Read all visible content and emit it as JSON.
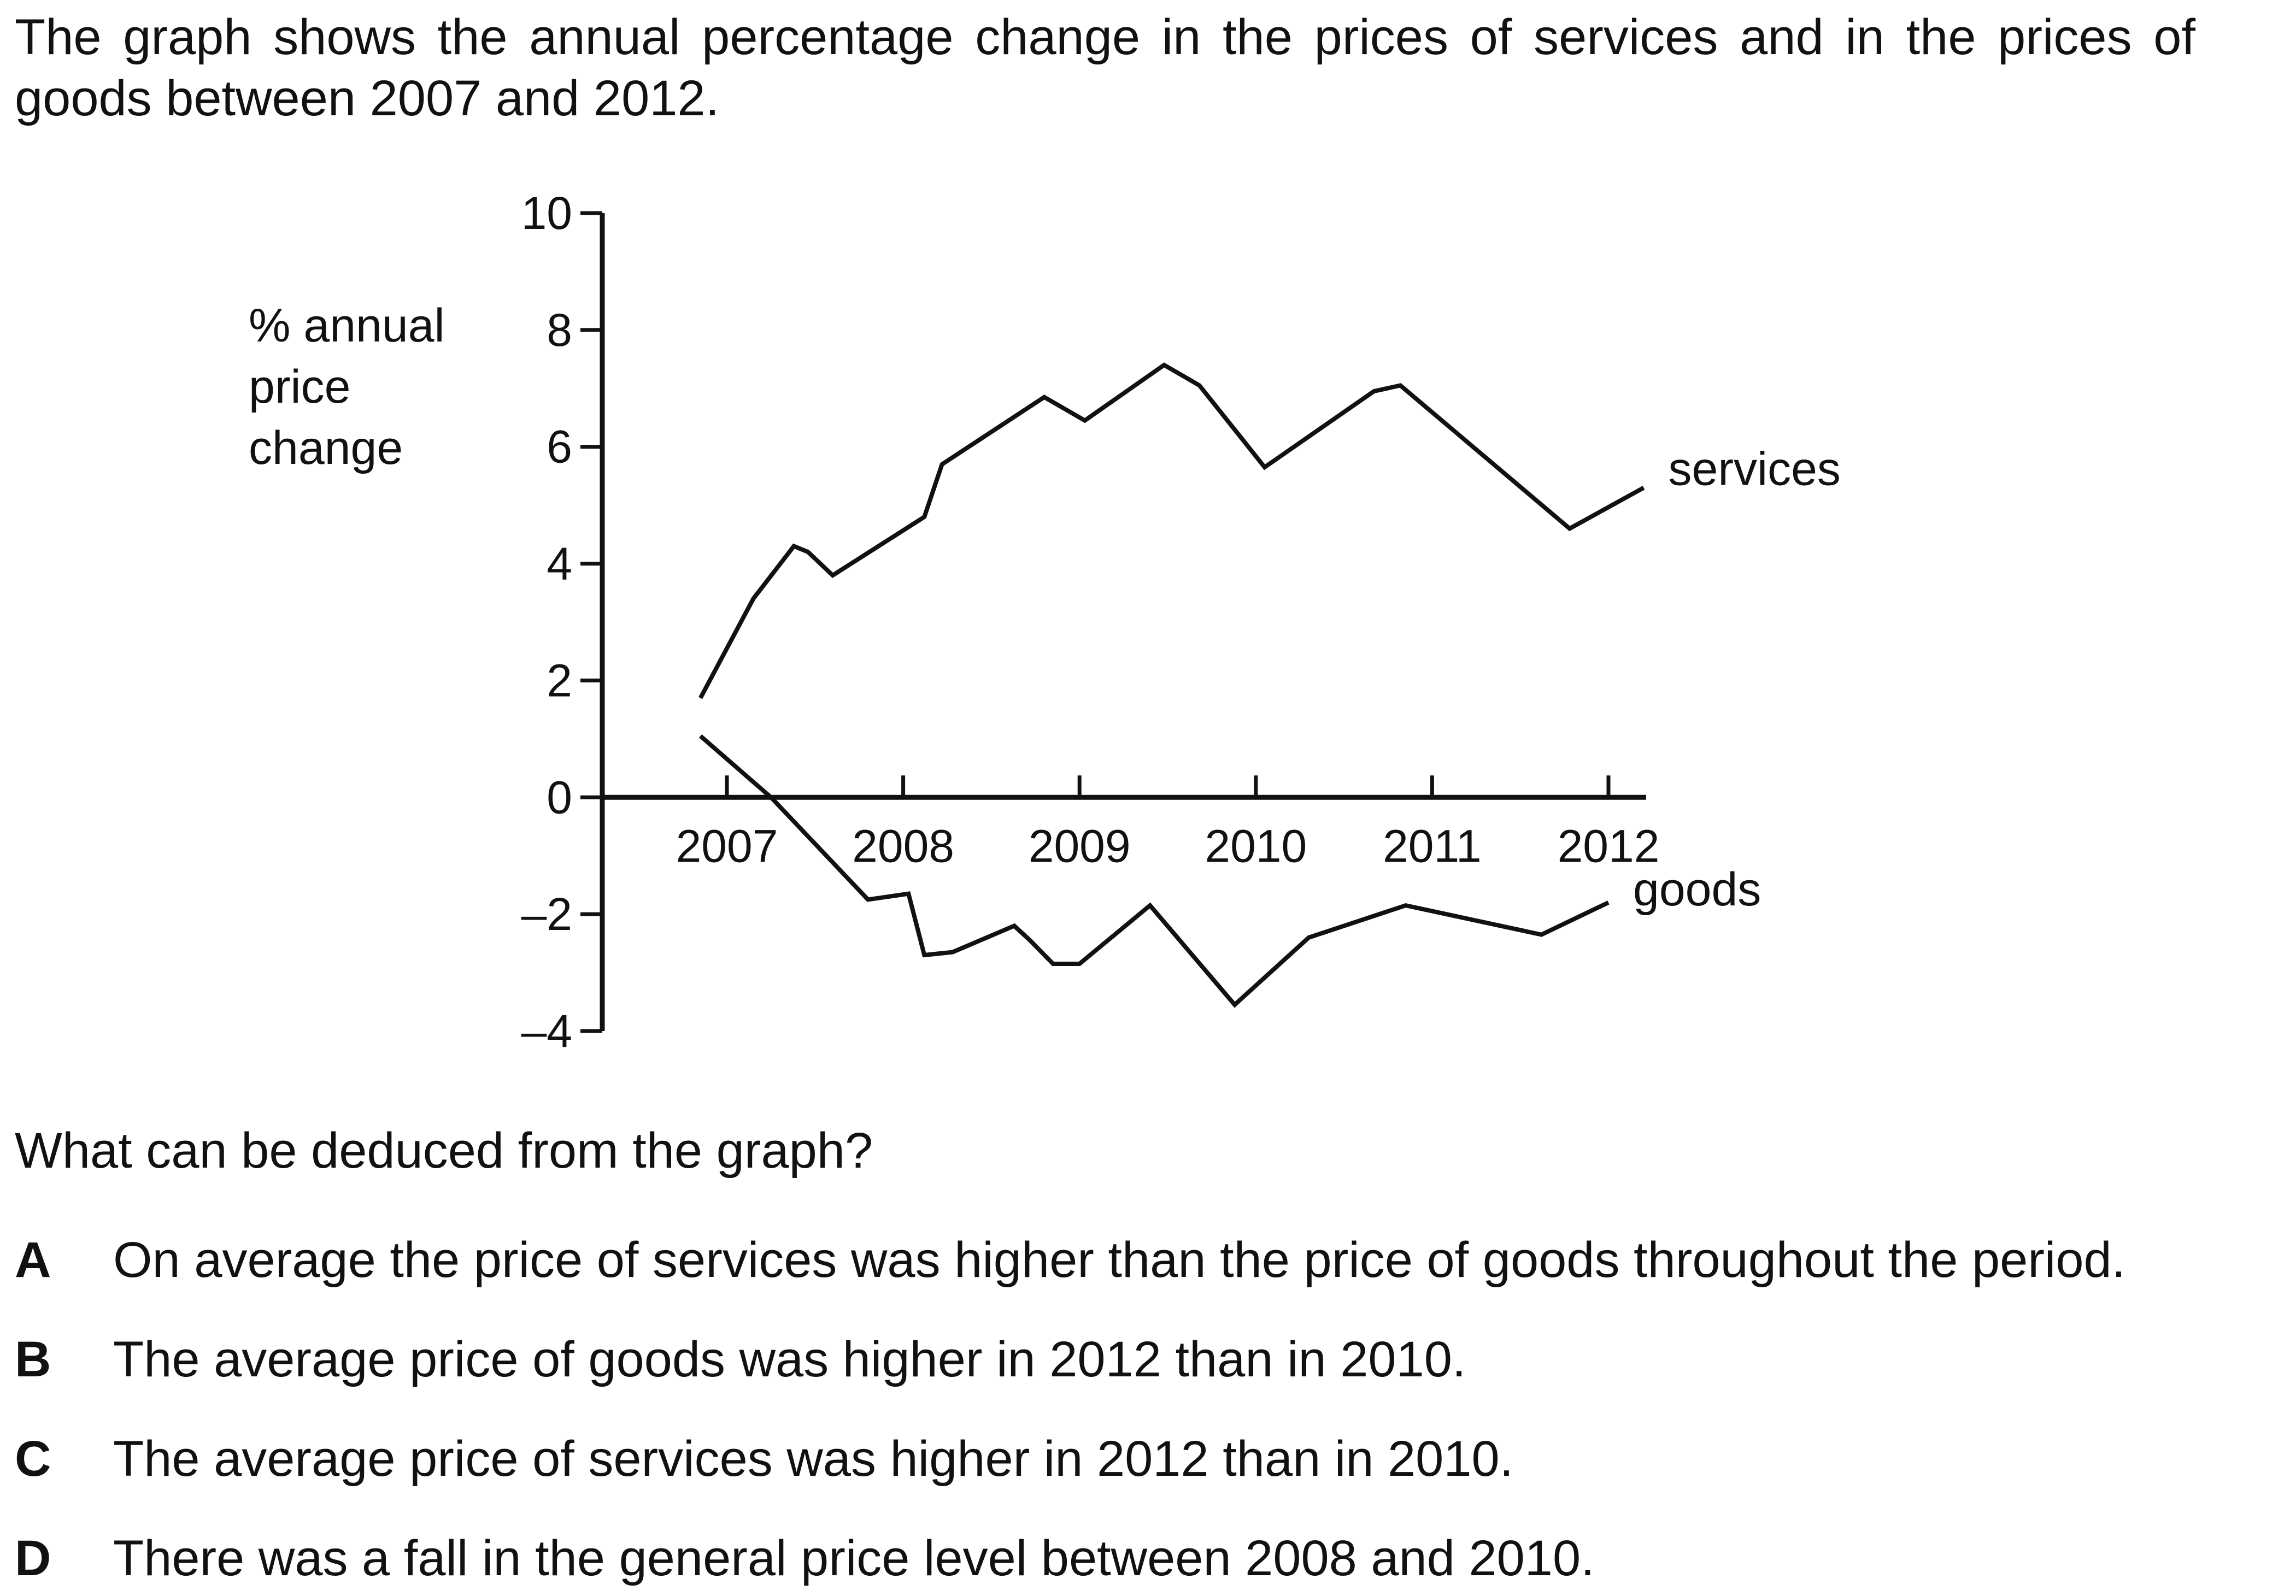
{
  "intro": "The graph shows the annual percentage change in the prices of services and in the prices of goods between 2007 and 2012.",
  "question": "What can be deduced from the graph?",
  "options": [
    {
      "letter": "A",
      "text": "On average the price of services was higher than the price of goods throughout the period."
    },
    {
      "letter": "B",
      "text": "The average price of goods was higher in 2012 than in 2010."
    },
    {
      "letter": "C",
      "text": "The average price of services was higher in 2012 than in 2010."
    },
    {
      "letter": "D",
      "text": "There was a fall in the general price level between 2008 and 2010."
    }
  ],
  "chart_data": {
    "type": "line",
    "title": "",
    "ylabel": "% annual price change",
    "xlabel": "",
    "ylim": [
      -4,
      10
    ],
    "yticks": [
      {
        "v": 10,
        "label": "10"
      },
      {
        "v": 8,
        "label": "8"
      },
      {
        "v": 6,
        "label": "6"
      },
      {
        "v": 4,
        "label": "4"
      },
      {
        "v": 2,
        "label": "2"
      },
      {
        "v": 0,
        "label": "0"
      },
      {
        "v": -2,
        "label": "–2"
      },
      {
        "v": -4,
        "label": "–4"
      }
    ],
    "xlim": [
      2006.35,
      2012.2
    ],
    "xticks": [
      {
        "v": 2007,
        "label": "2007"
      },
      {
        "v": 2008,
        "label": "2008"
      },
      {
        "v": 2009,
        "label": "2009"
      },
      {
        "v": 2010,
        "label": "2010"
      },
      {
        "v": 2011,
        "label": "2011"
      },
      {
        "v": 2012,
        "label": "2012"
      }
    ],
    "grid": false,
    "legend": "series labels placed at right end of each line",
    "series": [
      {
        "name": "services",
        "color": "#111111",
        "points": [
          [
            2006.85,
            1.7
          ],
          [
            2007.15,
            3.4
          ],
          [
            2007.38,
            4.3
          ],
          [
            2007.46,
            4.2
          ],
          [
            2007.6,
            3.8
          ],
          [
            2008.12,
            4.8
          ],
          [
            2008.22,
            5.7
          ],
          [
            2008.8,
            6.85
          ],
          [
            2009.03,
            6.45
          ],
          [
            2009.48,
            7.4
          ],
          [
            2009.68,
            7.05
          ],
          [
            2010.05,
            5.65
          ],
          [
            2010.67,
            6.95
          ],
          [
            2010.82,
            7.05
          ],
          [
            2011.78,
            4.6
          ],
          [
            2012.2,
            5.3
          ]
        ]
      },
      {
        "name": "goods",
        "color": "#111111",
        "points": [
          [
            2006.85,
            1.05
          ],
          [
            2007.25,
            0.0
          ],
          [
            2007.8,
            -1.75
          ],
          [
            2008.03,
            -1.65
          ],
          [
            2008.12,
            -2.7
          ],
          [
            2008.28,
            -2.65
          ],
          [
            2008.63,
            -2.2
          ],
          [
            2008.72,
            -2.45
          ],
          [
            2008.85,
            -2.85
          ],
          [
            2009.0,
            -2.85
          ],
          [
            2009.4,
            -1.85
          ],
          [
            2009.88,
            -3.55
          ],
          [
            2010.3,
            -2.4
          ],
          [
            2010.85,
            -1.85
          ],
          [
            2011.62,
            -2.35
          ],
          [
            2012.0,
            -1.8
          ]
        ]
      }
    ]
  }
}
